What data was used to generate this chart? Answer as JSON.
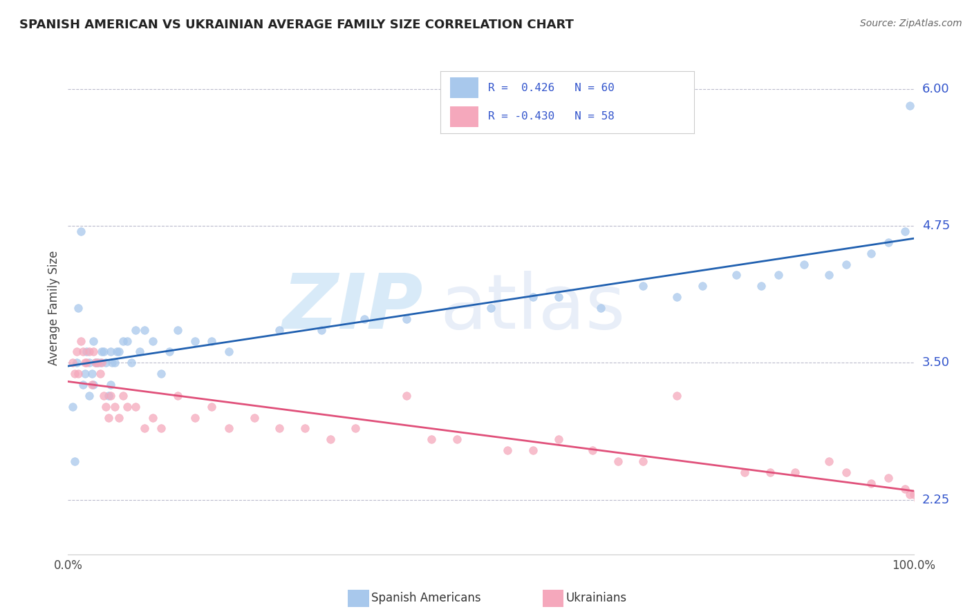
{
  "title": "SPANISH AMERICAN VS UKRAINIAN AVERAGE FAMILY SIZE CORRELATION CHART",
  "source": "Source: ZipAtlas.com",
  "ylabel": "Average Family Size",
  "xlim": [
    0,
    100
  ],
  "ylim": [
    1.75,
    6.25
  ],
  "yticks": [
    2.25,
    3.5,
    4.75,
    6.0
  ],
  "color_blue": "#A8C8EC",
  "color_pink": "#F5A8BC",
  "line_color_blue": "#2060B0",
  "line_color_pink": "#E0507A",
  "watermark_color": "#D8EAF8",
  "label1": "Spanish Americans",
  "label2": "Ukrainians",
  "blue_x": [
    0.5,
    0.8,
    1.0,
    1.2,
    1.5,
    1.8,
    2.0,
    2.2,
    2.5,
    2.5,
    2.8,
    3.0,
    3.0,
    3.2,
    3.5,
    3.8,
    4.0,
    4.2,
    4.5,
    4.8,
    5.0,
    5.0,
    5.2,
    5.5,
    5.8,
    6.0,
    6.5,
    7.0,
    7.5,
    8.0,
    8.5,
    9.0,
    10.0,
    11.0,
    12.0,
    13.0,
    15.0,
    17.0,
    19.0,
    25.0,
    30.0,
    35.0,
    40.0,
    50.0,
    55.0,
    58.0,
    63.0,
    68.0,
    72.0,
    75.0,
    79.0,
    82.0,
    84.0,
    87.0,
    90.0,
    92.0,
    95.0,
    97.0,
    99.0,
    99.5
  ],
  "blue_y": [
    3.1,
    2.6,
    3.5,
    4.0,
    4.7,
    3.3,
    3.4,
    3.6,
    3.2,
    3.5,
    3.4,
    3.3,
    3.7,
    3.5,
    3.5,
    3.5,
    3.6,
    3.6,
    3.5,
    3.2,
    3.6,
    3.3,
    3.5,
    3.5,
    3.6,
    3.6,
    3.7,
    3.7,
    3.5,
    3.8,
    3.6,
    3.8,
    3.7,
    3.4,
    3.6,
    3.8,
    3.7,
    3.7,
    3.6,
    3.8,
    3.8,
    3.9,
    3.9,
    4.0,
    4.1,
    4.1,
    4.0,
    4.2,
    4.1,
    4.2,
    4.3,
    4.2,
    4.3,
    4.4,
    4.3,
    4.4,
    4.5,
    4.6,
    4.7,
    5.85
  ],
  "pink_x": [
    0.5,
    0.8,
    1.0,
    1.2,
    1.5,
    1.8,
    2.0,
    2.2,
    2.5,
    2.8,
    3.0,
    3.2,
    3.5,
    3.8,
    4.0,
    4.2,
    4.5,
    4.8,
    5.0,
    5.5,
    6.0,
    6.5,
    7.0,
    8.0,
    9.0,
    10.0,
    11.0,
    13.0,
    15.0,
    17.0,
    19.0,
    22.0,
    25.0,
    28.0,
    31.0,
    34.0,
    40.0,
    43.0,
    46.0,
    52.0,
    55.0,
    58.0,
    62.0,
    65.0,
    68.0,
    72.0,
    80.0,
    83.0,
    86.0,
    90.0,
    92.0,
    95.0,
    97.0,
    99.0,
    99.5,
    100.0,
    100.5,
    101.0
  ],
  "pink_y": [
    3.5,
    3.4,
    3.6,
    3.4,
    3.7,
    3.6,
    3.5,
    3.5,
    3.6,
    3.3,
    3.6,
    3.5,
    3.5,
    3.4,
    3.5,
    3.2,
    3.1,
    3.0,
    3.2,
    3.1,
    3.0,
    3.2,
    3.1,
    3.1,
    2.9,
    3.0,
    2.9,
    3.2,
    3.0,
    3.1,
    2.9,
    3.0,
    2.9,
    2.9,
    2.8,
    2.9,
    3.2,
    2.8,
    2.8,
    2.7,
    2.7,
    2.8,
    2.7,
    2.6,
    2.6,
    3.2,
    2.5,
    2.5,
    2.5,
    2.6,
    2.5,
    2.4,
    2.45,
    2.35,
    2.3,
    2.3,
    2.25,
    2.2
  ]
}
